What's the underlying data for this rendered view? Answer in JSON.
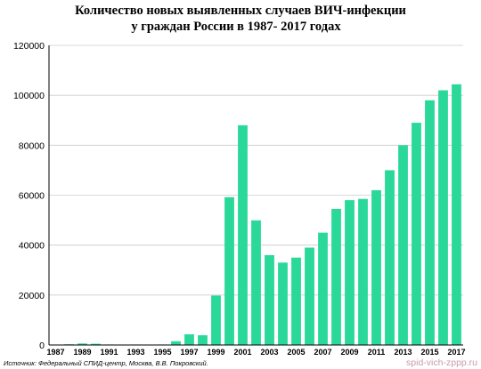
{
  "colors": {
    "bar": "#2ad99a",
    "axis": "#000000",
    "grid": "#cccccc",
    "watermark": "#c79ca8"
  },
  "chart_data": {
    "type": "bar",
    "title_line1": "Количество новых выявленных случаев ВИЧ-инфекции",
    "title_line2": "у граждан России в 1987- 2017 годах",
    "xlabel": "",
    "ylabel": "",
    "ylim": [
      0,
      120000
    ],
    "yticks": [
      0,
      20000,
      40000,
      60000,
      80000,
      100000,
      120000
    ],
    "ytick_labels": [
      "0",
      "20000",
      "40000",
      "60000",
      "80000",
      "100000",
      "120000"
    ],
    "grid": "horizontal",
    "categories": [
      "1987",
      "1988",
      "1989",
      "1990",
      "1991",
      "1992",
      "1993",
      "1994",
      "1995",
      "1996",
      "1997",
      "1998",
      "1999",
      "2000",
      "2001",
      "2002",
      "2003",
      "2004",
      "2005",
      "2006",
      "2007",
      "2008",
      "2009",
      "2010",
      "2011",
      "2012",
      "2013",
      "2014",
      "2015",
      "2016",
      "2017"
    ],
    "xtick_labels": [
      "1987",
      "1989",
      "1991",
      "1993",
      "1995",
      "1997",
      "1999",
      "2001",
      "2003",
      "2005",
      "2007",
      "2009",
      "2011",
      "2013",
      "2015",
      "2017"
    ],
    "values": [
      130,
      300,
      600,
      500,
      200,
      150,
      200,
      150,
      200,
      1500,
      4300,
      3900,
      19800,
      59200,
      88000,
      49900,
      36000,
      33000,
      35000,
      39000,
      45000,
      54500,
      58000,
      58500,
      62000,
      70000,
      80000,
      89000,
      98000,
      102000,
      104400
    ]
  },
  "source": "Источник: Федеральный СПИД-центр, Москва, В.В. Покровский.",
  "watermark": "spid-vich-zppp.ru"
}
